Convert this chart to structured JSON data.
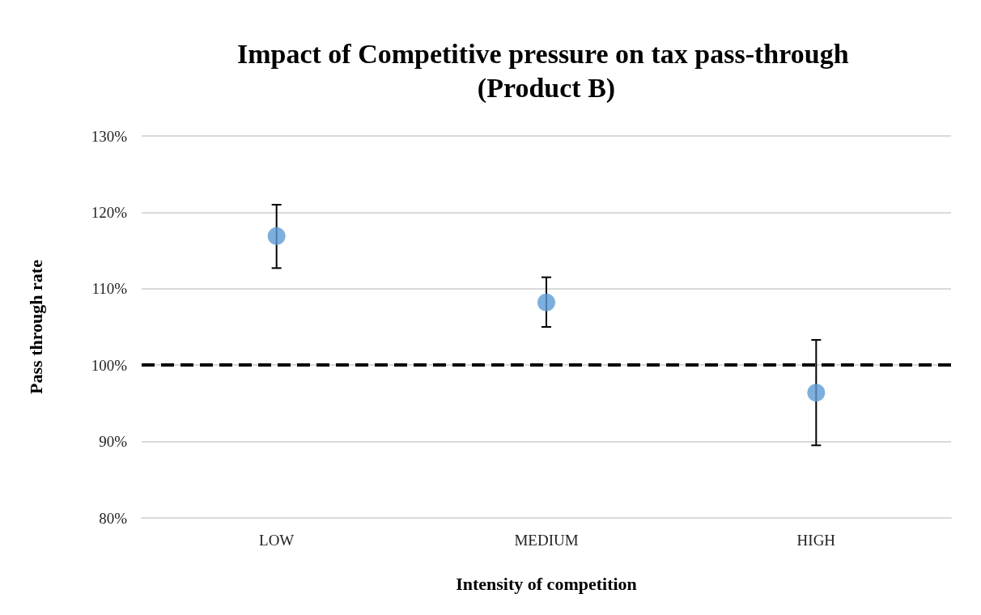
{
  "chart_data": {
    "type": "scatter",
    "title": "Impact of Competitive pressure on tax pass-through (Product B)",
    "xlabel": "Intensity of competition",
    "ylabel": "Pass through rate",
    "categories": [
      "LOW",
      "MEDIUM",
      "HIGH"
    ],
    "series": [
      {
        "color": "#5b9bd5",
        "values": [
          116.9,
          108.2,
          96.4
        ],
        "errors": [
          [
            112.7,
            121.0
          ],
          [
            105.0,
            111.5
          ],
          [
            89.5,
            103.3
          ]
        ]
      }
    ],
    "ylim": [
      80,
      130
    ],
    "yticks": [
      {
        "value": 80,
        "label": "80%"
      },
      {
        "value": 90,
        "label": "90%"
      },
      {
        "value": 100,
        "label": "100%"
      },
      {
        "value": 110,
        "label": "110%"
      },
      {
        "value": 120,
        "label": "120%"
      },
      {
        "value": 130,
        "label": "130%"
      }
    ],
    "ref_lines": [
      {
        "axis": "y",
        "value": 100,
        "color": "#000000",
        "line_style": "dashed"
      }
    ],
    "grid": "y",
    "marker": "circle"
  }
}
